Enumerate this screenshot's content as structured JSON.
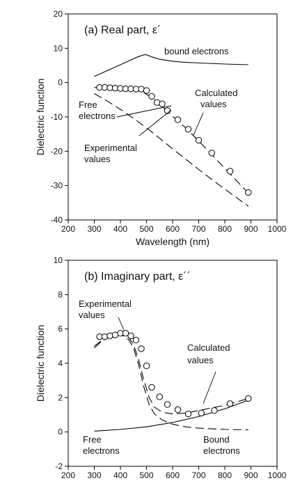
{
  "chart_data": [
    {
      "type": "line",
      "title": "(a) Real part, ε´",
      "xlabel": "Wavelength (nm)",
      "ylabel": "Dielectric function",
      "xlim": [
        200,
        1000
      ],
      "ylim": [
        -40,
        20
      ],
      "xticks": [
        200,
        300,
        400,
        500,
        600,
        700,
        800,
        900,
        1000
      ],
      "yticks": [
        20,
        10,
        0,
        -10,
        -20,
        -30,
        -40
      ],
      "series": [
        {
          "name": "bound electrons",
          "style": "solid",
          "x": [
            300,
            350,
            400,
            440,
            470,
            490,
            500,
            520,
            550,
            600,
            650,
            700,
            800,
            890
          ],
          "y": [
            1.8,
            3.5,
            5.2,
            6.6,
            7.6,
            8.1,
            8.1,
            7.5,
            6.8,
            6.2,
            5.9,
            5.7,
            5.4,
            5.2
          ]
        },
        {
          "name": "Free electrons",
          "style": "dashed",
          "x": [
            300,
            350,
            400,
            450,
            500,
            550,
            600,
            650,
            700,
            750,
            800,
            850,
            890
          ],
          "y": [
            -3.2,
            -5.4,
            -7.8,
            -10.4,
            -13.2,
            -16.2,
            -19.3,
            -22.3,
            -25.3,
            -28.2,
            -31.0,
            -33.8,
            -36.0
          ]
        },
        {
          "name": "Calculated values",
          "style": "dashed",
          "x": [
            300,
            350,
            400,
            450,
            480,
            500,
            530,
            560,
            600,
            650,
            700,
            750,
            800,
            850,
            890
          ],
          "y": [
            -1.4,
            -1.8,
            -2.0,
            -2.1,
            -2.5,
            -3.4,
            -5.0,
            -7.0,
            -9.8,
            -13.2,
            -17.0,
            -21.0,
            -25.0,
            -29.0,
            -32.2
          ]
        },
        {
          "name": "Experimental values",
          "style": "markers",
          "x": [
            320,
            340,
            360,
            380,
            400,
            420,
            440,
            460,
            480,
            500,
            520,
            540,
            560,
            580,
            620,
            660,
            700,
            750,
            820,
            890
          ],
          "y": [
            -1.4,
            -1.4,
            -1.5,
            -1.6,
            -1.7,
            -1.8,
            -1.8,
            -1.9,
            -1.9,
            -2.3,
            -4.0,
            -5.8,
            -6.2,
            -8.2,
            -10.8,
            -13.6,
            -16.8,
            -20.5,
            -25.8,
            -32.0
          ]
        }
      ],
      "annotations": [
        {
          "text": "bound electrons",
          "target": "bound electrons"
        },
        {
          "text": "Free",
          "target": "Free electrons"
        },
        {
          "text": "electrons",
          "target": "Free electrons"
        },
        {
          "text": "Calculated",
          "target": "Calculated values"
        },
        {
          "text": "values",
          "target": "Calculated values"
        },
        {
          "text": "Experimental",
          "target": "Experimental values"
        },
        {
          "text": "values",
          "target": "Experimental values"
        }
      ]
    },
    {
      "type": "line",
      "title": "(b) Imaginary part, ε´´",
      "xlabel": "",
      "ylabel": "Dielectric function",
      "xlim": [
        200,
        1000
      ],
      "ylim": [
        -2,
        10
      ],
      "xticks": [
        200,
        300,
        400,
        500,
        600,
        700,
        800,
        900,
        1000
      ],
      "yticks": [
        10,
        8,
        6,
        4,
        2,
        0,
        -2
      ],
      "series": [
        {
          "name": "Free electrons",
          "style": "solid",
          "x": [
            300,
            400,
            500,
            600,
            700,
            800,
            890
          ],
          "y": [
            0.05,
            0.15,
            0.3,
            0.55,
            0.9,
            1.35,
            1.85
          ]
        },
        {
          "name": "Bound electrons",
          "style": "dashed",
          "x": [
            300,
            330,
            360,
            390,
            410,
            430,
            450,
            470,
            490,
            510,
            530,
            560,
            600,
            650,
            700,
            800,
            890
          ],
          "y": [
            4.9,
            5.3,
            5.55,
            5.65,
            5.6,
            5.4,
            4.9,
            3.9,
            2.6,
            1.6,
            1.05,
            0.7,
            0.45,
            0.3,
            0.22,
            0.15,
            0.12
          ]
        },
        {
          "name": "Calculated values",
          "style": "dashed",
          "x": [
            300,
            330,
            360,
            390,
            410,
            430,
            450,
            470,
            490,
            510,
            530,
            560,
            600,
            650,
            700,
            800,
            890
          ],
          "y": [
            5.0,
            5.35,
            5.6,
            5.7,
            5.7,
            5.55,
            5.1,
            4.2,
            3.0,
            2.0,
            1.45,
            1.15,
            1.05,
            1.1,
            1.25,
            1.55,
            1.95
          ]
        },
        {
          "name": "Experimental values",
          "style": "markers",
          "x": [
            320,
            340,
            360,
            380,
            400,
            420,
            440,
            460,
            480,
            500,
            520,
            550,
            580,
            620,
            660,
            710,
            760,
            820,
            890
          ],
          "y": [
            5.55,
            5.55,
            5.6,
            5.65,
            5.75,
            5.75,
            5.6,
            5.35,
            4.85,
            3.85,
            2.6,
            2.05,
            1.6,
            1.3,
            1.05,
            1.1,
            1.25,
            1.65,
            1.95
          ]
        }
      ],
      "annotations": [
        {
          "text": "Experimental",
          "target": "Experimental values"
        },
        {
          "text": "values",
          "target": "Experimental values"
        },
        {
          "text": "Calculated",
          "target": "Calculated values"
        },
        {
          "text": "values",
          "target": "Calculated values"
        },
        {
          "text": "Free",
          "target": "Free electrons"
        },
        {
          "text": "electrons",
          "target": "Free electrons"
        },
        {
          "text": "Bound",
          "target": "Bound electrons"
        },
        {
          "text": "electrons",
          "target": "Bound electrons"
        }
      ]
    }
  ]
}
